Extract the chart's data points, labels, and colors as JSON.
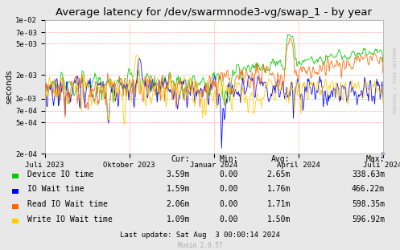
{
  "title": "Average latency for /dev/swarmnode3-vg/swap_1 - by year",
  "ylabel": "seconds",
  "background_color": "#e8e8e8",
  "plot_bg_color": "#ffffff",
  "grid_color": "#ffaaaa",
  "yticks": [
    0.0002,
    0.0005,
    0.0007,
    0.001,
    0.002,
    0.005,
    0.007,
    0.01
  ],
  "ytick_labels": [
    "2e-04",
    "5e-04",
    "7e-04",
    "1e-03",
    "2e-03",
    "5e-03",
    "7e-03",
    "1e-02"
  ],
  "ylim": [
    0.0002,
    0.01
  ],
  "xtick_labels": [
    "Juli 2023",
    "Oktober 2023",
    "Januar 2024",
    "April 2024",
    "Juli 2024"
  ],
  "legend": [
    {
      "label": "Device IO time",
      "color": "#00cc00"
    },
    {
      "label": "IO Wait time",
      "color": "#0000ff"
    },
    {
      "label": "Read IO Wait time",
      "color": "#ff6600"
    },
    {
      "label": "Write IO Wait time",
      "color": "#ffcc00"
    }
  ],
  "table_headers": [
    "Cur:",
    "Min:",
    "Avg:",
    "Max:"
  ],
  "table_rows": [
    [
      "Device IO time",
      "3.59m",
      "0.00",
      "2.65m",
      "338.63m"
    ],
    [
      "IO Wait time",
      "1.59m",
      "0.00",
      "1.76m",
      "466.22m"
    ],
    [
      "Read IO Wait time",
      "2.06m",
      "0.00",
      "1.71m",
      "598.35m"
    ],
    [
      "Write IO Wait time",
      "1.09m",
      "0.00",
      "1.50m",
      "596.92m"
    ]
  ],
  "footer": "Last update: Sat Aug  3 00:00:14 2024",
  "munin_version": "Munin 2.0.57",
  "rrdtool_label": "RRDTOOL / TOBI OETIKER",
  "seed": 42
}
